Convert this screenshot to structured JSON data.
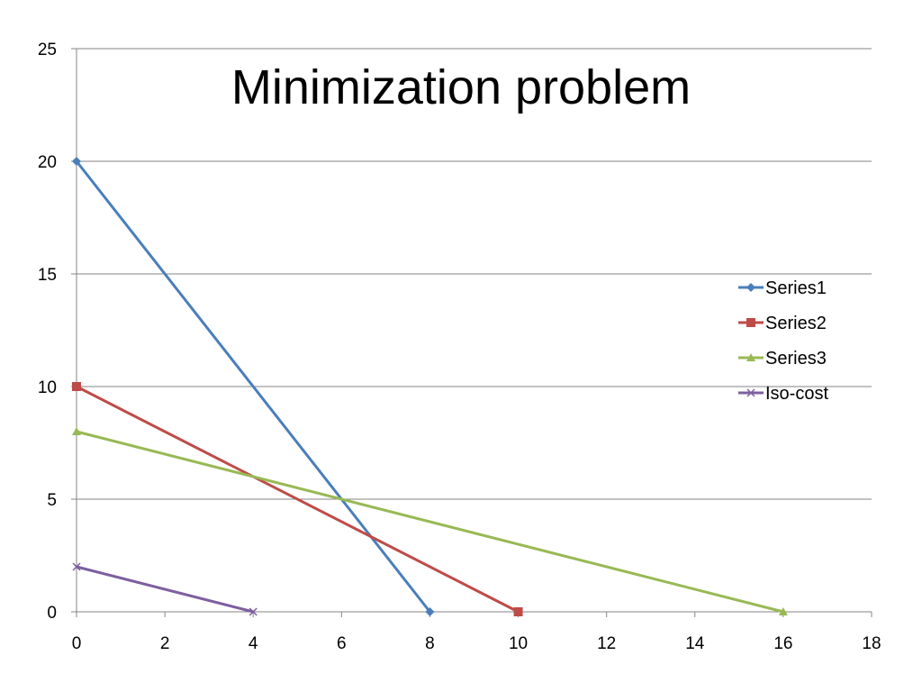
{
  "chart_data": {
    "type": "line",
    "title": "Minimization problem",
    "xlabel": "",
    "ylabel": "",
    "xlim": [
      0,
      18
    ],
    "ylim": [
      0,
      25
    ],
    "x_ticks": [
      0,
      2,
      4,
      6,
      8,
      10,
      12,
      14,
      16,
      18
    ],
    "y_ticks": [
      0,
      5,
      10,
      15,
      20,
      25
    ],
    "grid": "horizontal",
    "legend_position": "right",
    "series": [
      {
        "name": "Series1",
        "color": "#4a7ebb",
        "marker": "diamond",
        "points": [
          [
            0,
            20
          ],
          [
            8,
            0
          ]
        ]
      },
      {
        "name": "Series2",
        "color": "#be4b48",
        "marker": "square",
        "points": [
          [
            0,
            10
          ],
          [
            10,
            0
          ]
        ]
      },
      {
        "name": "Series3",
        "color": "#98b954",
        "marker": "triangle",
        "points": [
          [
            0,
            8
          ],
          [
            16,
            0
          ]
        ]
      },
      {
        "name": "Iso-cost",
        "color": "#7d5fa0",
        "marker": "x",
        "points": [
          [
            0,
            2
          ],
          [
            4,
            0
          ]
        ]
      }
    ]
  }
}
